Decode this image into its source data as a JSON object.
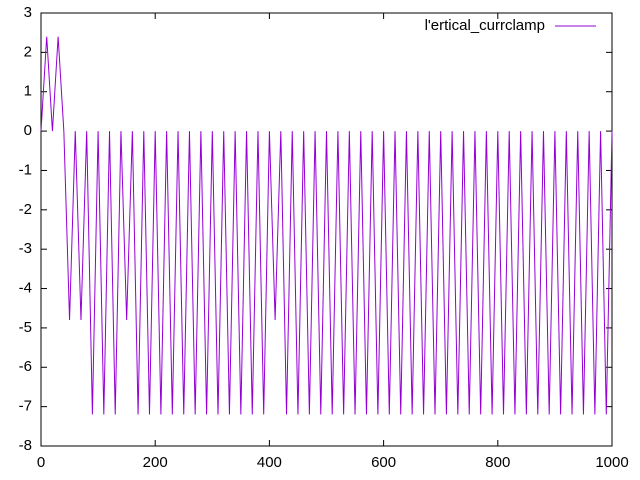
{
  "chart_data": {
    "type": "line",
    "x": [
      0,
      10,
      20,
      30,
      40,
      50,
      60,
      70,
      80,
      90,
      100,
      110,
      120,
      130,
      140,
      150,
      160,
      170,
      180,
      190,
      200,
      210,
      220,
      230,
      240,
      250,
      260,
      270,
      280,
      290,
      300,
      310,
      320,
      330,
      340,
      350,
      360,
      370,
      380,
      390,
      400,
      410,
      420,
      430,
      440,
      450,
      460,
      470,
      480,
      490,
      500,
      510,
      520,
      530,
      540,
      550,
      560,
      570,
      580,
      590,
      600,
      610,
      620,
      630,
      640,
      650,
      660,
      670,
      680,
      690,
      700,
      710,
      720,
      730,
      740,
      750,
      760,
      770,
      780,
      790,
      800,
      810,
      820,
      830,
      840,
      850,
      860,
      870,
      880,
      890,
      900,
      910,
      920,
      930,
      940,
      950,
      960,
      970,
      980,
      990,
      1000
    ],
    "series": [
      {
        "name": "l'ertical_currclamp",
        "color": "#9400d3",
        "values": [
          0,
          2.4,
          0,
          2.4,
          0,
          -4.8,
          0,
          -4.8,
          0,
          -7.2,
          0,
          -7.2,
          0,
          -7.2,
          0,
          -4.8,
          0,
          -7.2,
          0,
          -7.2,
          0,
          -7.2,
          0,
          -7.2,
          0,
          -7.2,
          0,
          -7.2,
          0,
          -7.2,
          0,
          -7.2,
          0,
          -7.2,
          0,
          -7.2,
          0,
          -7.2,
          0,
          -7.2,
          0,
          -4.8,
          0,
          -7.2,
          0,
          -7.2,
          0,
          -7.2,
          0,
          -7.2,
          0,
          -7.2,
          0,
          -7.2,
          0,
          -7.2,
          0,
          -7.2,
          0,
          -7.2,
          0,
          -7.2,
          0,
          -7.2,
          0,
          -7.2,
          0,
          -7.2,
          0,
          -7.2,
          0,
          -7.2,
          0,
          -7.2,
          0,
          -7.2,
          0,
          -7.2,
          0,
          -7.2,
          0,
          -7.2,
          0,
          -7.2,
          0,
          -7.2,
          0,
          -7.2,
          0,
          -7.2,
          0,
          -7.2,
          0,
          -7.2,
          0,
          -7.2,
          0,
          -7.2,
          0,
          -7.2,
          0
        ]
      }
    ],
    "xlim": [
      0,
      1000
    ],
    "xticks": [
      0,
      200,
      400,
      600,
      800,
      1000
    ],
    "ylim": [
      -8,
      3
    ],
    "yticks": [
      -8,
      -7,
      -6,
      -5,
      -4,
      -3,
      -2,
      -1,
      0,
      1,
      2,
      3
    ],
    "legend": "top-right"
  }
}
